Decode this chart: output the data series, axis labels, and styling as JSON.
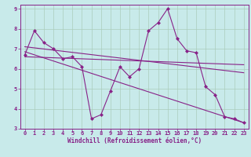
{
  "xlabel": "Windchill (Refroidissement éolien,°C)",
  "bg_color": "#c8eaea",
  "grid_color": "#aaccbb",
  "line_color": "#882288",
  "xlim": [
    -0.5,
    23.5
  ],
  "ylim": [
    3,
    9.2
  ],
  "xticks": [
    0,
    1,
    2,
    3,
    4,
    5,
    6,
    7,
    8,
    9,
    10,
    11,
    12,
    13,
    14,
    15,
    16,
    17,
    18,
    19,
    20,
    21,
    22,
    23
  ],
  "yticks": [
    3,
    4,
    5,
    6,
    7,
    8,
    9
  ],
  "series1_x": [
    0,
    1,
    2,
    3,
    4,
    5,
    6,
    7,
    8,
    9,
    10,
    11,
    12,
    13,
    14,
    15,
    16,
    17,
    18,
    19,
    20,
    21,
    22,
    23
  ],
  "series1_y": [
    6.7,
    7.9,
    7.3,
    7.0,
    6.5,
    6.6,
    6.1,
    3.5,
    3.7,
    4.9,
    6.1,
    5.6,
    6.0,
    7.9,
    8.3,
    9.0,
    7.5,
    6.9,
    6.8,
    5.1,
    4.7,
    3.6,
    3.5,
    3.3
  ],
  "series2_x": [
    0,
    23
  ],
  "series2_y": [
    6.85,
    3.3
  ],
  "series3_x": [
    0,
    23
  ],
  "series3_y": [
    7.1,
    5.8
  ],
  "series4_x": [
    0,
    23
  ],
  "series4_y": [
    6.6,
    6.2
  ]
}
